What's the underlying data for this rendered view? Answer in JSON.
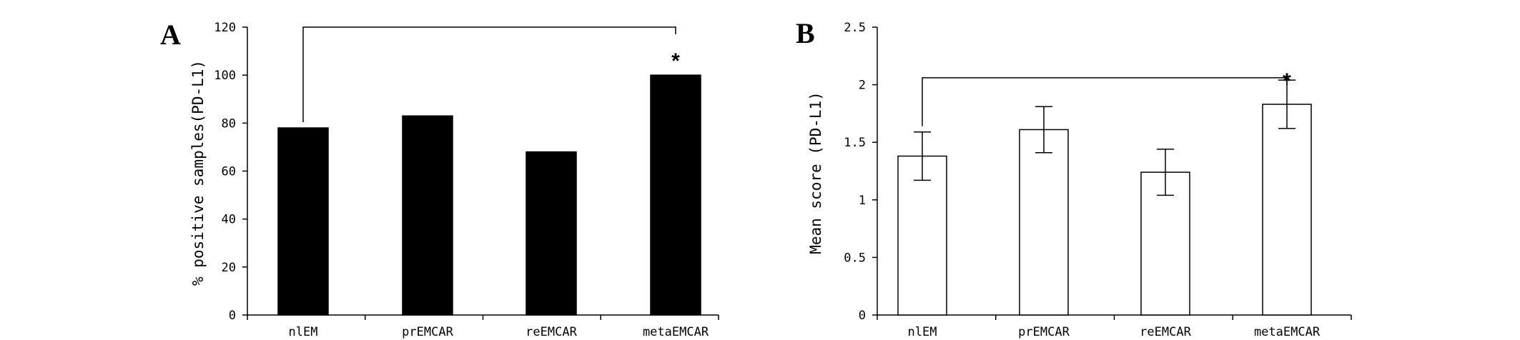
{
  "chart_data": [
    {
      "panel": "A",
      "type": "bar",
      "categories": [
        "nlEM",
        "prEMCAR",
        "reEMCAR",
        "metaEMCAR"
      ],
      "values": [
        78,
        83,
        68,
        100
      ],
      "ylabel": "% positive samples(PD-L1)",
      "xlabel": "",
      "ylim": [
        0,
        120
      ],
      "yticks": [
        "0",
        "20",
        "40",
        "60",
        "80",
        "100",
        "120"
      ],
      "bar_fill": "#000000",
      "error_bars": false,
      "significance": {
        "from": 0,
        "to": 3,
        "bracket_level": 120,
        "marker": "*"
      },
      "grid": false,
      "legend": "none"
    },
    {
      "panel": "B",
      "type": "bar",
      "categories": [
        "nlEM",
        "prEMCAR",
        "reEMCAR",
        "metaEMCAR"
      ],
      "values": [
        1.38,
        1.61,
        1.24,
        1.83
      ],
      "errors": [
        0.21,
        0.2,
        0.2,
        0.21
      ],
      "ylabel": "Mean score (PD-L1)",
      "xlabel": "",
      "ylim": [
        0,
        2.5
      ],
      "yticks": [
        "0",
        "0.5",
        "1",
        "1.5",
        "2",
        "2.5"
      ],
      "bar_fill": "#ffffff",
      "error_bars": true,
      "significance": {
        "from": 0,
        "to": 3,
        "bracket_level": 2.06,
        "marker": "*"
      },
      "grid": false,
      "legend": "none"
    }
  ]
}
